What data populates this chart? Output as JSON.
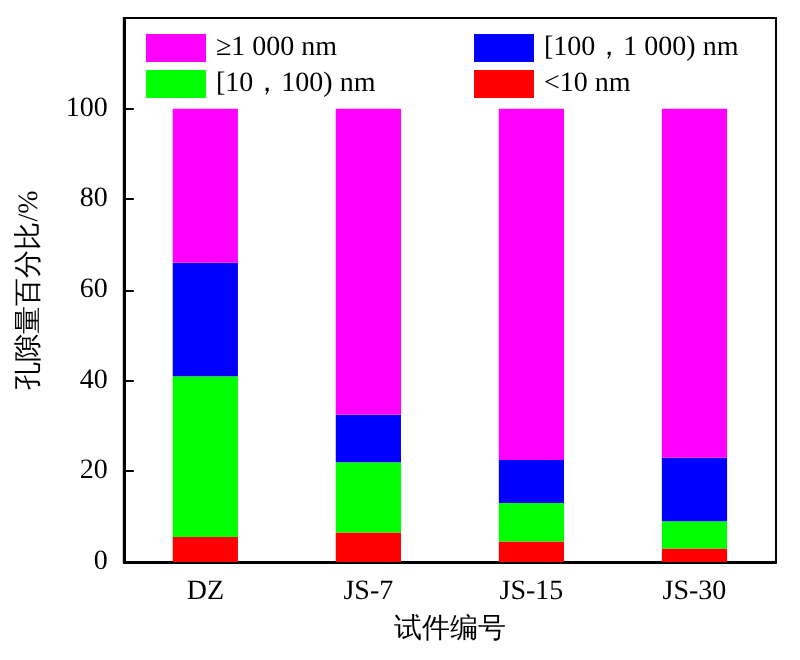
{
  "chart_data": {
    "type": "bar",
    "stacked": true,
    "xlabel": "试件编号",
    "ylabel": "孔隙量百分比/%",
    "categories": [
      "DZ",
      "JS-7",
      "JS-15",
      "JS-30"
    ],
    "series": [
      {
        "name": "<10 nm",
        "color": "#ff0000",
        "values": [
          5.5,
          6.5,
          4.5,
          3
        ]
      },
      {
        "name": "[10，100) nm",
        "color": "#00ff00",
        "values": [
          35.5,
          15.5,
          8.5,
          6
        ]
      },
      {
        "name": "[100，1 000) nm",
        "color": "#0000ff",
        "values": [
          25,
          10.5,
          9.5,
          14
        ]
      },
      {
        "name": "≥1 000 nm",
        "color": "#ff00ff",
        "values": [
          34,
          67.5,
          77.5,
          77
        ]
      }
    ],
    "ylim": [
      0,
      120
    ],
    "yticks": [
      0,
      20,
      40,
      60,
      80,
      100
    ],
    "grid": false,
    "legend": "top"
  }
}
